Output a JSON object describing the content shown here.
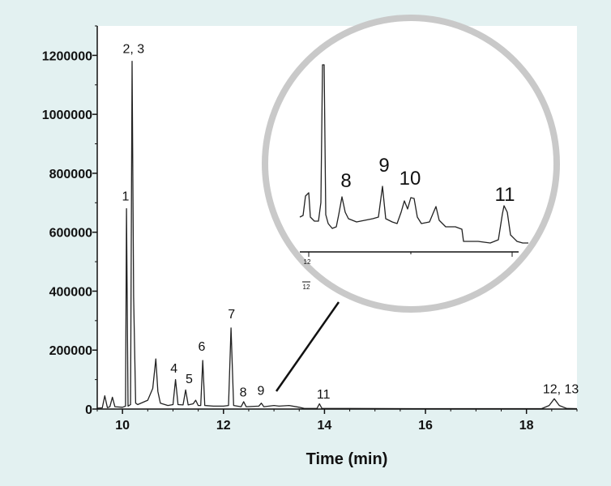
{
  "chart_data": {
    "type": "line",
    "title": "",
    "xlabel": "Time (min)",
    "ylabel": "",
    "xlim": [
      9.5,
      19
    ],
    "ylim": [
      0,
      1300000
    ],
    "grid": false,
    "legend": "none",
    "colors": {
      "background": "#e3f1f1",
      "plot": "#ffffff",
      "trace": "#222222"
    },
    "x_ticks": [
      10,
      12,
      14,
      16,
      18
    ],
    "y_ticks": [
      0,
      200000,
      400000,
      600000,
      800000,
      1000000,
      1200000
    ],
    "y_tick_labels": [
      "0",
      "200000",
      "400000",
      "600000",
      "800000",
      "1000000",
      "1200000"
    ],
    "series": [
      {
        "trace": [
          [
            9.5,
            3000
          ],
          [
            9.6,
            4000
          ],
          [
            9.65,
            45000
          ],
          [
            9.7,
            5000
          ],
          [
            9.75,
            8000
          ],
          [
            9.8,
            40000
          ],
          [
            9.85,
            8000
          ],
          [
            10.0,
            6000
          ],
          [
            10.06,
            10000
          ],
          [
            10.08,
            680000
          ],
          [
            10.11,
            10000
          ],
          [
            10.16,
            15000
          ],
          [
            10.19,
            1180000
          ],
          [
            10.22,
            380000
          ],
          [
            10.26,
            20000
          ],
          [
            10.3,
            15000
          ],
          [
            10.5,
            30000
          ],
          [
            10.6,
            70000
          ],
          [
            10.66,
            170000
          ],
          [
            10.7,
            60000
          ],
          [
            10.75,
            20000
          ],
          [
            10.9,
            12000
          ],
          [
            11.0,
            15000
          ],
          [
            11.05,
            100000
          ],
          [
            11.1,
            15000
          ],
          [
            11.2,
            14000
          ],
          [
            11.25,
            65000
          ],
          [
            11.3,
            14000
          ],
          [
            11.4,
            18000
          ],
          [
            11.45,
            30000
          ],
          [
            11.5,
            12000
          ],
          [
            11.55,
            12000
          ],
          [
            11.59,
            165000
          ],
          [
            11.63,
            12000
          ],
          [
            11.8,
            10000
          ],
          [
            12.0,
            10000
          ],
          [
            12.1,
            12000
          ],
          [
            12.15,
            275000
          ],
          [
            12.2,
            12000
          ],
          [
            12.35,
            8000
          ],
          [
            12.4,
            25000
          ],
          [
            12.45,
            8000
          ],
          [
            12.7,
            10000
          ],
          [
            12.75,
            20000
          ],
          [
            12.8,
            8000
          ],
          [
            13.0,
            12000
          ],
          [
            13.1,
            10000
          ],
          [
            13.3,
            12000
          ],
          [
            13.5,
            6000
          ],
          [
            13.6,
            2000
          ],
          [
            13.85,
            2000
          ],
          [
            13.9,
            18000
          ],
          [
            13.95,
            2000
          ],
          [
            14.5,
            2000
          ],
          [
            16.0,
            1500
          ],
          [
            17.0,
            1500
          ],
          [
            18.3,
            1500
          ],
          [
            18.45,
            12000
          ],
          [
            18.55,
            35000
          ],
          [
            18.65,
            12000
          ],
          [
            18.8,
            2000
          ],
          [
            19.0,
            1500
          ]
        ]
      }
    ],
    "peak_labels": [
      {
        "text": "1",
        "x": 10.06,
        "y": 700000
      },
      {
        "text": "2, 3",
        "x": 10.22,
        "y": 1200000
      },
      {
        "text": "4",
        "x": 11.02,
        "y": 115000
      },
      {
        "text": "5",
        "x": 11.32,
        "y": 80000
      },
      {
        "text": "6",
        "x": 11.57,
        "y": 190000
      },
      {
        "text": "7",
        "x": 12.16,
        "y": 300000
      },
      {
        "text": "8",
        "x": 12.39,
        "y": 35000
      },
      {
        "text": "9",
        "x": 12.74,
        "y": 40000
      },
      {
        "text": "11",
        "x": 13.98,
        "y": 28000
      },
      {
        "text": "12, 13",
        "x": 18.68,
        "y": 45000
      }
    ]
  },
  "inset": {
    "labels": [
      "8",
      "9",
      "10",
      "11"
    ],
    "tick_labels": [
      "12",
      "12"
    ]
  }
}
